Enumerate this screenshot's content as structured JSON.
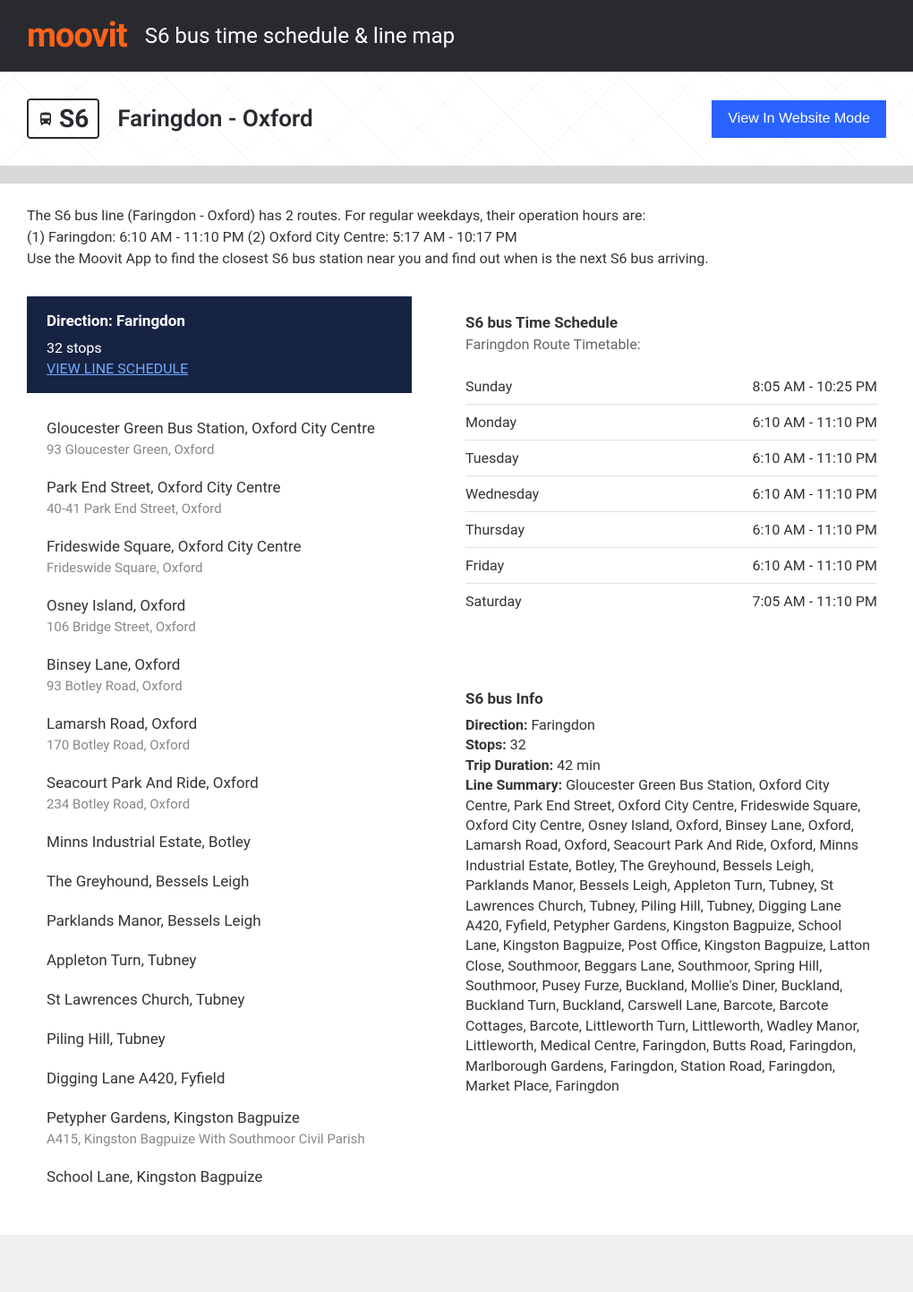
{
  "header": {
    "logo": "moovit",
    "title": "S6 bus time schedule & line map",
    "logo_color": "#ff6319",
    "bg_color": "#292a30"
  },
  "hero": {
    "route_code": "S6",
    "route_name": "Faringdon - Oxford",
    "view_button": "View In Website Mode",
    "button_bg": "#2962ff"
  },
  "intro": {
    "line1": "The S6 bus line (Faringdon - Oxford) has 2 routes. For regular weekdays, their operation hours are:",
    "line2": "(1) Faringdon: 6:10 AM - 11:10 PM (2) Oxford City Centre: 5:17 AM - 10:17 PM",
    "line3": "Use the Moovit App to find the closest S6 bus station near you and find out when is the next S6 bus arriving."
  },
  "direction": {
    "title": "Direction: Faringdon",
    "stops_count": "32 stops",
    "link": "VIEW LINE SCHEDULE",
    "bg_color": "#172342"
  },
  "stops": [
    {
      "name": "Gloucester Green Bus Station, Oxford City Centre",
      "addr": "93 Gloucester Green, Oxford"
    },
    {
      "name": "Park End Street, Oxford City Centre",
      "addr": "40-41 Park End Street, Oxford"
    },
    {
      "name": "Frideswide Square, Oxford City Centre",
      "addr": "Frideswide Square, Oxford"
    },
    {
      "name": "Osney Island, Oxford",
      "addr": "106 Bridge Street, Oxford"
    },
    {
      "name": "Binsey Lane, Oxford",
      "addr": "93 Botley Road, Oxford"
    },
    {
      "name": "Lamarsh Road, Oxford",
      "addr": "170 Botley Road, Oxford"
    },
    {
      "name": "Seacourt Park And Ride, Oxford",
      "addr": "234 Botley Road, Oxford"
    },
    {
      "name": "Minns Industrial Estate, Botley",
      "addr": ""
    },
    {
      "name": "The Greyhound, Bessels Leigh",
      "addr": ""
    },
    {
      "name": "Parklands Manor, Bessels Leigh",
      "addr": ""
    },
    {
      "name": "Appleton Turn, Tubney",
      "addr": ""
    },
    {
      "name": "St Lawrences Church, Tubney",
      "addr": ""
    },
    {
      "name": "Piling Hill, Tubney",
      "addr": ""
    },
    {
      "name": "Digging Lane A420, Fyfield",
      "addr": ""
    },
    {
      "name": "Petypher Gardens, Kingston Bagpuize",
      "addr": "A415, Kingston Bagpuize With Southmoor Civil Parish"
    },
    {
      "name": "School Lane, Kingston Bagpuize",
      "addr": ""
    }
  ],
  "schedule": {
    "title": "S6 bus Time Schedule",
    "subtitle": "Faringdon Route Timetable:",
    "rows": [
      {
        "day": "Sunday",
        "hours": "8:05 AM - 10:25 PM"
      },
      {
        "day": "Monday",
        "hours": "6:10 AM - 11:10 PM"
      },
      {
        "day": "Tuesday",
        "hours": "6:10 AM - 11:10 PM"
      },
      {
        "day": "Wednesday",
        "hours": "6:10 AM - 11:10 PM"
      },
      {
        "day": "Thursday",
        "hours": "6:10 AM - 11:10 PM"
      },
      {
        "day": "Friday",
        "hours": "6:10 AM - 11:10 PM"
      },
      {
        "day": "Saturday",
        "hours": "7:05 AM - 11:10 PM"
      }
    ]
  },
  "info": {
    "title": "S6 bus Info",
    "direction_label": "Direction:",
    "direction_value": " Faringdon",
    "stops_label": "Stops:",
    "stops_value": " 32",
    "duration_label": "Trip Duration:",
    "duration_value": " 42 min",
    "summary_label": "Line Summary:",
    "summary_value": " Gloucester Green Bus Station, Oxford City Centre, Park End Street, Oxford City Centre, Frideswide Square, Oxford City Centre, Osney Island, Oxford, Binsey Lane, Oxford, Lamarsh Road, Oxford, Seacourt Park And Ride, Oxford, Minns Industrial Estate, Botley, The Greyhound, Bessels Leigh, Parklands Manor, Bessels Leigh, Appleton Turn, Tubney, St Lawrences Church, Tubney, Piling Hill, Tubney, Digging Lane A420, Fyfield, Petypher Gardens, Kingston Bagpuize, School Lane, Kingston Bagpuize, Post Office, Kingston Bagpuize, Latton Close, Southmoor, Beggars Lane, Southmoor, Spring Hill, Southmoor, Pusey Furze, Buckland, Mollie's Diner, Buckland, Buckland Turn, Buckland, Carswell Lane, Barcote, Barcote Cottages, Barcote, Littleworth Turn, Littleworth, Wadley Manor, Littleworth, Medical Centre, Faringdon, Butts Road, Faringdon, Marlborough Gardens, Faringdon, Station Road, Faringdon, Market Place, Faringdon"
  }
}
